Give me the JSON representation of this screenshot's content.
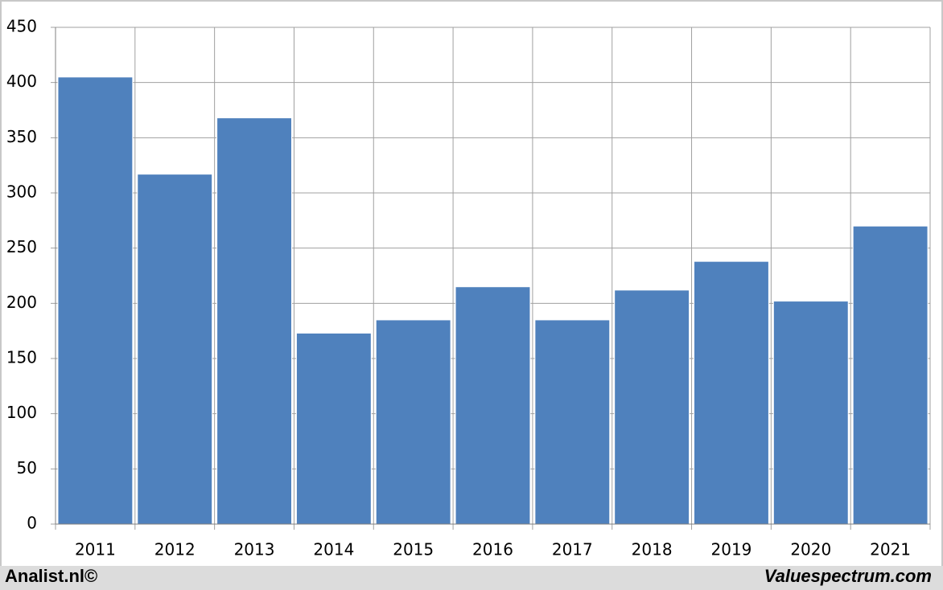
{
  "chart_data": {
    "type": "bar",
    "categories": [
      "2011",
      "2012",
      "2013",
      "2014",
      "2015",
      "2016",
      "2017",
      "2018",
      "2019",
      "2020",
      "2021"
    ],
    "values": [
      405,
      317,
      368,
      173,
      185,
      215,
      185,
      212,
      238,
      202,
      270
    ],
    "color": "#4f81bd",
    "ylim": [
      0,
      450
    ],
    "yticks": [
      0,
      50,
      100,
      150,
      200,
      250,
      300,
      350,
      400,
      450
    ],
    "grid": true
  },
  "footer": {
    "left": "Analist.nl©",
    "right": "Valuespectrum.com"
  }
}
